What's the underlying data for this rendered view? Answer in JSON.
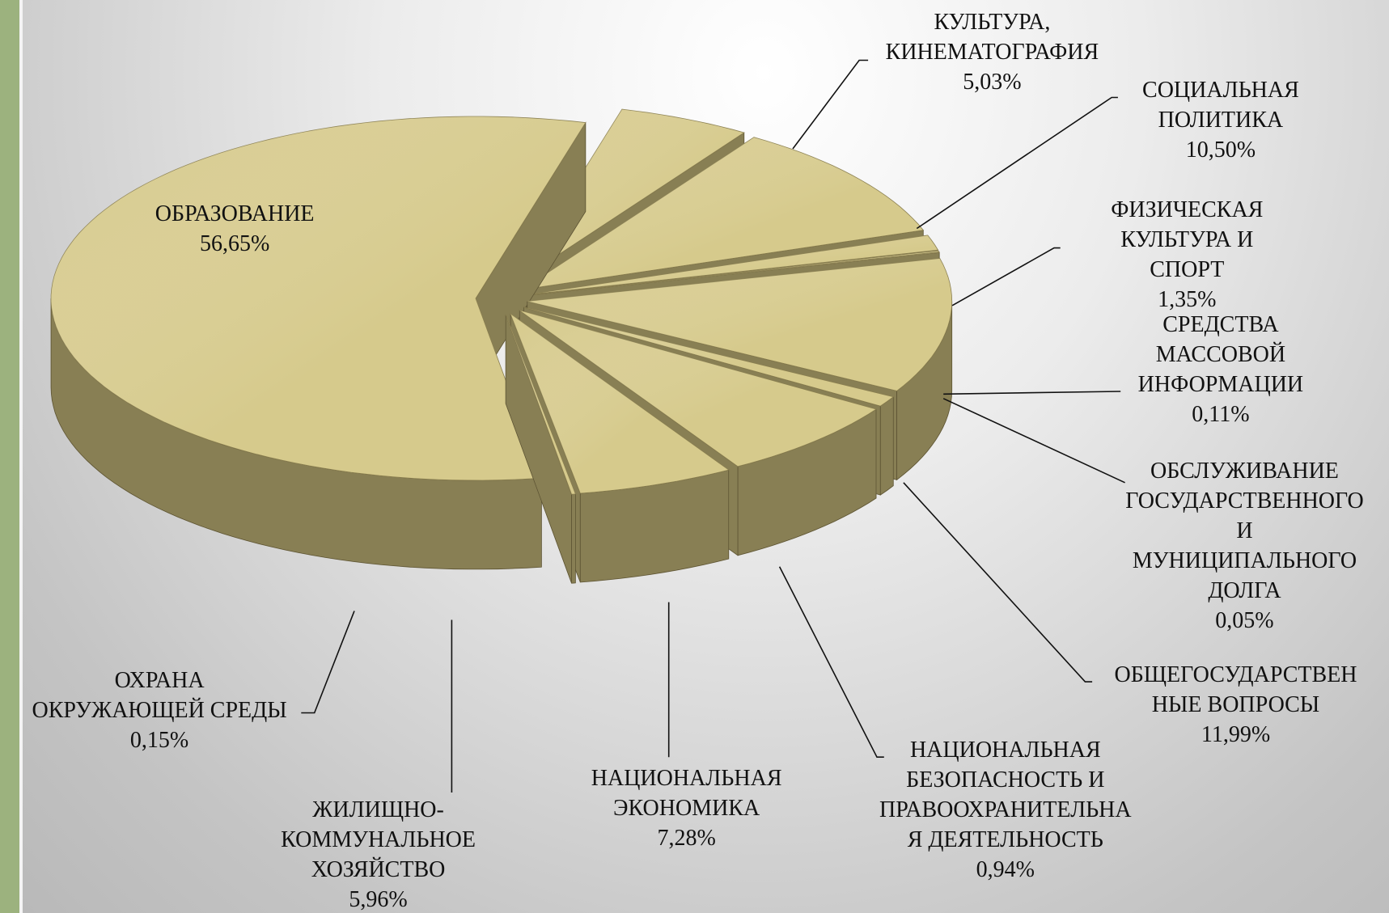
{
  "chart_data": {
    "type": "pie3d",
    "categories": [
      "КУЛЬТУРА,\nКИНЕМАТОГРАФИЯ",
      "СОЦИАЛЬНАЯ\nПОЛИТИКА",
      "ФИЗИЧЕСКАЯ\nКУЛЬТУРА И СПОРТ",
      "СРЕДСТВА\nМАССОВОЙ\nИНФОРМАЦИИ",
      "ОБСЛУЖИВАНИЕ\nГОСУДАРСТВЕННОГО\nИ МУНИЦИПАЛЬНОГО\nДОЛГА",
      "ОБЩЕГОСУДАРСТВЕН\nНЫЕ ВОПРОСЫ",
      "НАЦИОНАЛЬНАЯ\nБЕЗОПАСНОСТЬ И\nПРАВООХРАНИТЕЛЬНА\nЯ ДЕЯТЕЛЬНОСТЬ",
      "НАЦИОНАЛЬНАЯ\nЭКОНОМИКА",
      "ЖИЛИЩНО-\nКОММУНАЛЬНОЕ\nХОЗЯЙСТВО",
      "ОХРАНА\nОКРУЖАЮЩЕЙ СРЕДЫ",
      "ОБРАЗОВАНИЕ"
    ],
    "values": [
      5.03,
      10.5,
      1.35,
      0.11,
      0.05,
      11.99,
      0.94,
      7.28,
      5.96,
      0.15,
      56.65
    ],
    "value_labels": [
      "5,03%",
      "10,50%",
      "1,35%",
      "0,11%",
      "0,05%",
      "11,99%",
      "0,94%",
      "7,28%",
      "5,96%",
      "0,15%",
      "56,65%"
    ],
    "color": "#d6ca8c"
  }
}
